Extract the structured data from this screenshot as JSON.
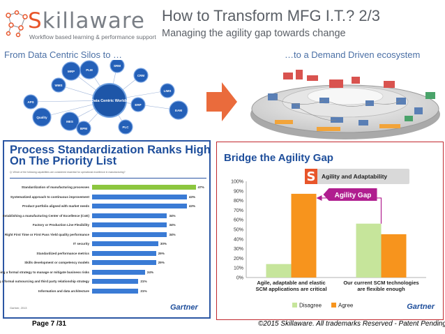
{
  "header": {
    "logo_word": "killaware",
    "logo_initial": "S",
    "logo_tagline": "Workflow based learning & performance support",
    "title": "How to Transform MFG I.T.? 2/3",
    "subtitle": "Managing the agility gap towards change"
  },
  "labels": {
    "from": "From  Data Centric Silos to …",
    "to": "…to a Demand Driven  ecosystem"
  },
  "silos": {
    "center": "Data Centric Worlds",
    "nodes": [
      "PLM",
      "WMS",
      "CRM",
      "MRP",
      "SRM",
      "APS",
      "EAM",
      "ERP",
      "PLC",
      "MES",
      "BPM",
      "LIMS",
      "Quality"
    ]
  },
  "left_panel": {
    "title": "Process Standardization Ranks High On The Priority List",
    "question": "Q: Which of the following capabilities are considered essential for operational excellence in manufacturing?",
    "source": "Gartner, 2013",
    "brand": "Gartner"
  },
  "right_panel": {
    "title": "Bridge the Agility Gap",
    "brand": "Gartner"
  },
  "chart_data": [
    {
      "type": "bar",
      "orientation": "horizontal",
      "title": "Process Standardization Ranks High On The Priority List",
      "categories": [
        "Standardization of manufacturing processes",
        "Systematized approach to continuous improvement",
        "Product portfolio aligned with market needs",
        "Establishing a manufacturing Center of Excellence (CoE)",
        "Factory or Production Line Flexibility",
        "Right First Time or First Pass Yield quality performance",
        "IT security",
        "Standardized performance metrics",
        "Skills development or competency models",
        "Developing a formal strategy to manage or mitigate business risks",
        "Developing a formal outsourcing and third party relationship strategy",
        "Information and data architecture"
      ],
      "values": [
        47,
        43,
        43,
        34,
        34,
        34,
        30,
        29,
        29,
        24,
        21,
        21
      ],
      "value_suffix": "%",
      "highlight_index": 0,
      "colors": {
        "highlight": "#8cc63f",
        "bar": "#3a7bd5"
      }
    },
    {
      "type": "bar",
      "title": "Bridge the Agility Gap",
      "categories": [
        "Agile, adaptable and elastic SCM applications are critical",
        "Our current SCM technologies are flexible enough"
      ],
      "series": [
        {
          "name": "Disagree",
          "values": [
            14,
            56
          ],
          "color": "#c6e59b"
        },
        {
          "name": "Agree",
          "values": [
            87,
            45
          ],
          "color": "#f7941d"
        }
      ],
      "ylim": [
        0,
        100
      ],
      "yticks": [
        "0%",
        "10%",
        "20%",
        "30%",
        "40%",
        "50%",
        "60%",
        "70%",
        "80%",
        "90%",
        "100%"
      ],
      "legend": "bottom",
      "annotations": {
        "box_label": "Agility and Adaptability",
        "gap_label": "Agility Gap"
      }
    }
  ],
  "footer": {
    "page": "Page 7 /31",
    "copyright": "©2015 Skillaware. All trademarks Reserved - Patent Pending"
  }
}
